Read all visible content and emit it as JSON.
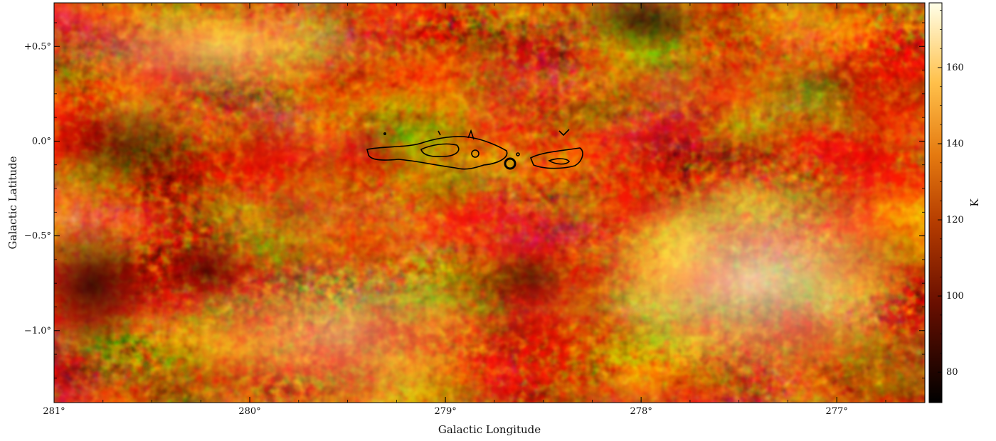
{
  "figure": {
    "xlabel": "Galactic Longitude",
    "ylabel": "Galactic Latitude",
    "colorbar_unit": "K",
    "colormap": "afmhot",
    "x_ticks": [
      {
        "value": 281,
        "label": "281°"
      },
      {
        "value": 280,
        "label": "280°"
      },
      {
        "value": 279,
        "label": "279°"
      },
      {
        "value": 278,
        "label": "278°"
      },
      {
        "value": 277,
        "label": "277°"
      }
    ],
    "y_ticks": [
      {
        "value": 0.5,
        "label": "+0.5°"
      },
      {
        "value": 0.0,
        "label": "0.0°"
      },
      {
        "value": -0.5,
        "label": "−0.5°"
      },
      {
        "value": -1.0,
        "label": "−1.0°"
      }
    ],
    "colorbar_ticks": [
      {
        "value": 80,
        "label": "80"
      },
      {
        "value": 100,
        "label": "100"
      },
      {
        "value": 120,
        "label": "120"
      },
      {
        "value": 140,
        "label": "140"
      },
      {
        "value": 160,
        "label": "160"
      }
    ],
    "x_range": [
      281.0,
      276.55
    ],
    "y_range": [
      -1.38,
      0.73
    ],
    "colorbar_range": [
      72,
      177
    ],
    "contour_color": "#000000"
  }
}
